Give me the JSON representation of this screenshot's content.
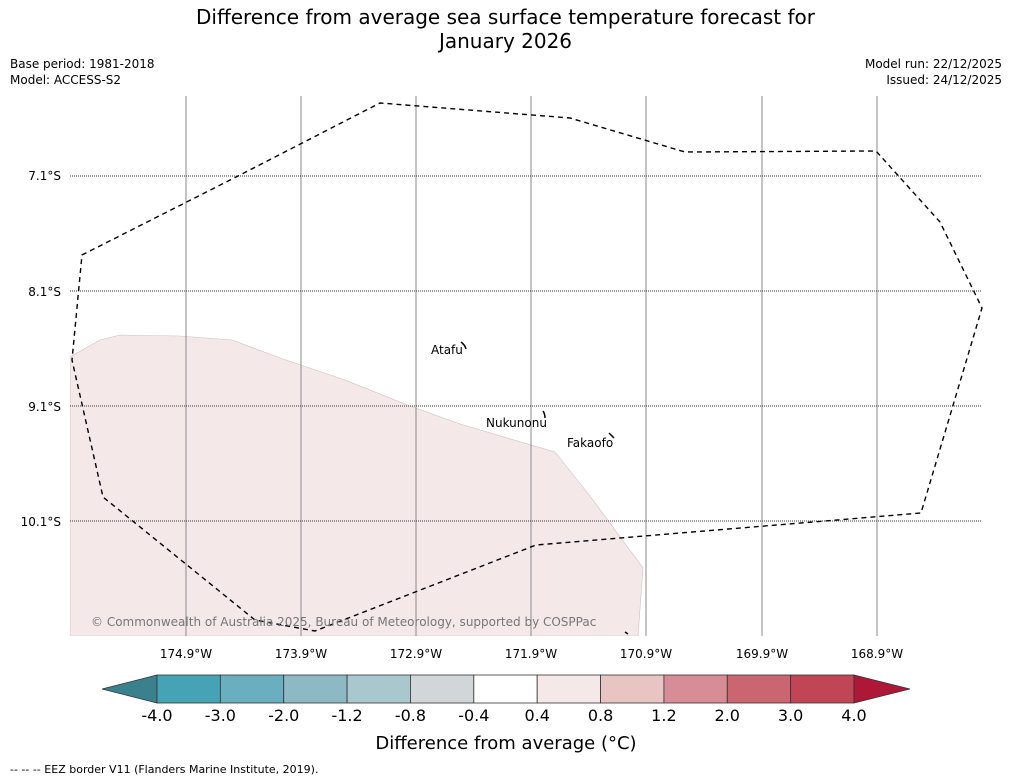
{
  "title_line1": "Difference from average sea surface temperature forecast for",
  "title_line2": "January 2026",
  "meta_left": {
    "base_period": "Base period: 1981-2018",
    "model": "Model: ACCESS-S2"
  },
  "meta_right": {
    "model_run": "Model run: 22/12/2025",
    "issued": "Issued: 24/12/2025"
  },
  "map": {
    "lat_labels": [
      "7.1°S",
      "8.1°S",
      "9.1°S",
      "10.1°S"
    ],
    "lon_labels": [
      "174.9°W",
      "173.9°W",
      "172.9°W",
      "171.9°W",
      "170.9°W",
      "169.9°W",
      "168.9°W"
    ],
    "places": [
      "Atafu",
      "Nukunonu",
      "Fakaofo"
    ],
    "copyright": "© Commonwealth of Australia 2025, Bureau of Meteorology, supported by COSPPac",
    "anomaly_fill_color": "#f4e8e8"
  },
  "colorbar": {
    "label": "Difference from average (°C)",
    "ticks": [
      "-4.0",
      "-3.0",
      "-2.0",
      "-1.2",
      "-0.8",
      "-0.4",
      "0.4",
      "0.8",
      "1.2",
      "2.0",
      "3.0",
      "4.0"
    ],
    "colors": [
      "#3b808d",
      "#45a3b5",
      "#6aafbf",
      "#8cb9c3",
      "#a9c8cd",
      "#d1d6d8",
      "#ffffff",
      "#f5e8e8",
      "#e8c4c2",
      "#d68d95",
      "#cb6670",
      "#c14555",
      "#ae1737"
    ]
  },
  "footer": "--  --  -- EEZ border V11 (Flanders Marine Institute, 2019)."
}
